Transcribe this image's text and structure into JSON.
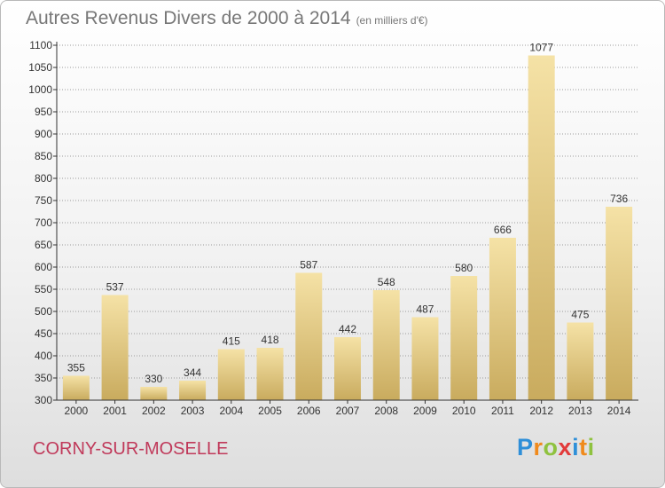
{
  "header": {
    "title": "Autres Revenus Divers de 2000 à 2014",
    "subtitle": "(en milliers d'€)"
  },
  "footer": {
    "place": "CORNY-SUR-MOSELLE"
  },
  "logo": {
    "letters": [
      {
        "ch": "P",
        "color": "#2f8fd8"
      },
      {
        "ch": "r",
        "color": "#f08a1c"
      },
      {
        "ch": "o",
        "color": "#8fc23f"
      },
      {
        "ch": "x",
        "color": "#e23a3a"
      },
      {
        "ch": "i",
        "color": "#2f8fd8"
      },
      {
        "ch": "t",
        "color": "#f08a1c"
      },
      {
        "ch": "i",
        "color": "#8fc23f"
      }
    ]
  },
  "colors": {
    "bar": "#e9cf7e",
    "bar_light": "#f5e2a6",
    "bar_dark": "#c9ab5e",
    "axis": "#333333",
    "grid": "#9c9c9c"
  },
  "chart_data": {
    "type": "bar",
    "title": "Autres Revenus Divers de 2000 à 2014",
    "subtitle": "(en milliers d'€)",
    "categories": [
      "2000",
      "2001",
      "2002",
      "2003",
      "2004",
      "2005",
      "2006",
      "2007",
      "2008",
      "2009",
      "2010",
      "2011",
      "2012",
      "2013",
      "2014"
    ],
    "values": [
      355,
      537,
      330,
      344,
      415,
      418,
      587,
      442,
      548,
      487,
      580,
      666,
      1077,
      475,
      736
    ],
    "ylim": [
      300,
      1100
    ],
    "yticks": [
      300,
      350,
      400,
      450,
      500,
      550,
      600,
      650,
      700,
      750,
      800,
      850,
      900,
      950,
      1000,
      1050,
      1100
    ],
    "grid": true,
    "data_labels": true
  }
}
